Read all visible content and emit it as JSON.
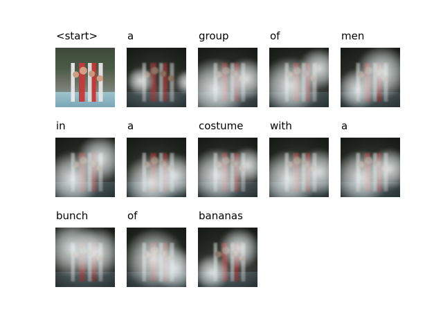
{
  "words": [
    "<start>",
    "a",
    "group",
    "of",
    "men",
    "in",
    "a",
    "costume",
    "with",
    "a",
    "bunch",
    "of",
    "bananas"
  ],
  "frames": [
    {
      "type": "original",
      "glows": []
    },
    {
      "type": "attention",
      "glows": [
        [
          88,
          50,
          18
        ],
        [
          20,
          48,
          20
        ]
      ]
    },
    {
      "type": "attention",
      "glows": [
        [
          25,
          60,
          45
        ],
        [
          70,
          45,
          30
        ]
      ]
    },
    {
      "type": "attention",
      "glows": [
        [
          30,
          55,
          42
        ],
        [
          72,
          30,
          30
        ]
      ]
    },
    {
      "type": "attention",
      "glows": [
        [
          60,
          35,
          38
        ],
        [
          25,
          60,
          30
        ]
      ]
    },
    {
      "type": "attention",
      "glows": [
        [
          25,
          60,
          40
        ],
        [
          65,
          30,
          34
        ]
      ]
    },
    {
      "type": "attention",
      "glows": [
        [
          35,
          65,
          40
        ],
        [
          70,
          55,
          32
        ]
      ]
    },
    {
      "type": "attention",
      "glows": [
        [
          28,
          55,
          40
        ],
        [
          72,
          40,
          26
        ]
      ]
    },
    {
      "type": "attention",
      "glows": [
        [
          28,
          60,
          42
        ],
        [
          72,
          50,
          34
        ]
      ]
    },
    {
      "type": "attention",
      "glows": [
        [
          30,
          58,
          40
        ],
        [
          70,
          45,
          30
        ]
      ]
    },
    {
      "type": "attention",
      "glows": [
        [
          25,
          30,
          40
        ],
        [
          60,
          35,
          36
        ]
      ]
    },
    {
      "type": "attention",
      "glows": [
        [
          40,
          45,
          44
        ],
        [
          70,
          60,
          32
        ]
      ]
    },
    {
      "type": "attention",
      "glows": [
        [
          60,
          30,
          30
        ],
        [
          20,
          65,
          26
        ]
      ]
    }
  ]
}
